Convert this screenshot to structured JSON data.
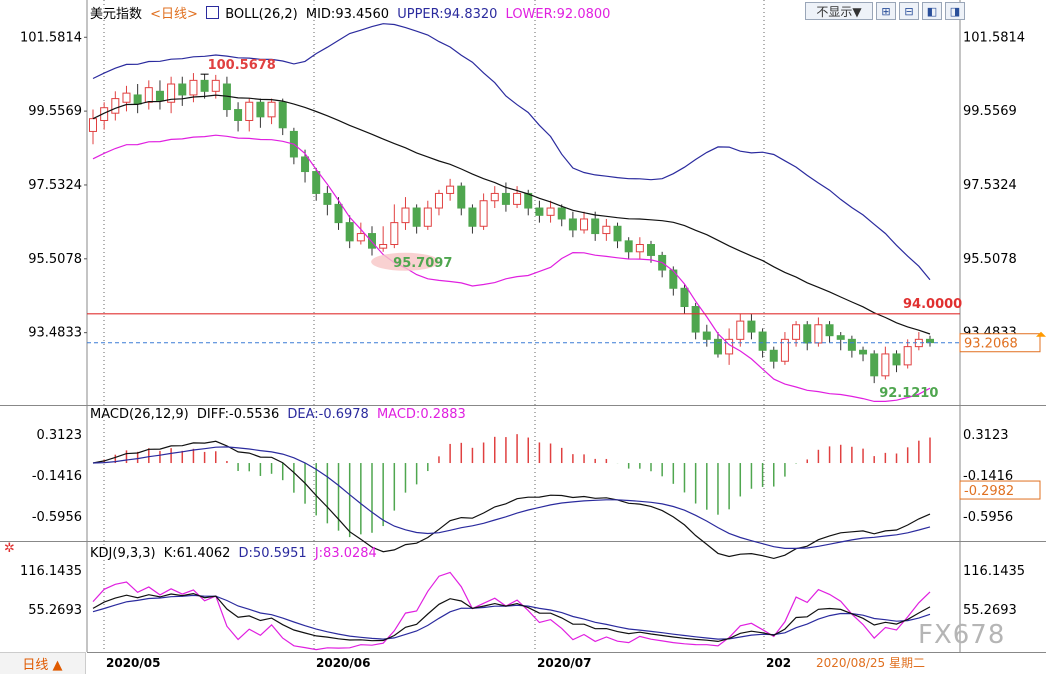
{
  "header": {
    "main": {
      "name": "美元指数",
      "period": "<日线>",
      "indicator": "BOLL(26,2)",
      "mid": "MID:93.4560",
      "upper": "UPPER:94.8320",
      "lower": "LOWER:92.0800"
    },
    "macd": {
      "name": "MACD(26,12,9)",
      "diff": "DIFF:-0.5536",
      "dea": "DEA:-0.6978",
      "macd": "MACD:0.2883"
    },
    "kdj": {
      "name": "KDJ(9,3,3)",
      "k": "K:61.4062",
      "d": "D:50.5951",
      "j": "J:83.0284"
    }
  },
  "toolbar": {
    "hide_label": "不显示▼"
  },
  "bottom_tab": {
    "label": "日线 ▲"
  },
  "watermark": "FX678",
  "colors": {
    "up": "#e04040",
    "down": "#4fa64f",
    "upper": "#2b2b9e",
    "mid": "#111111",
    "lower": "#e020e0",
    "kdj_k": "#111111",
    "kdj_d": "#2b2b9e",
    "kdj_j": "#e020e0",
    "hline": "#e03030",
    "current": "#3a7bd5"
  },
  "chart_data": {
    "type": "candlestick",
    "date_labels": [
      "2020/05",
      "2020/06",
      "2020/07",
      "202",
      "2020/08/25 星期二"
    ],
    "price_axis": [
      "101.5814",
      "99.5569",
      "97.5324",
      "95.5078",
      "93.4833"
    ],
    "price_range": [
      91.5,
      102.0
    ],
    "annotations": {
      "high": "100.5678",
      "low_mid": "95.7097",
      "low_end": "92.1210",
      "hline": "94.0000",
      "current": "93.2068"
    },
    "candles": [
      [
        99.0,
        99.35,
        98.65,
        99.6
      ],
      [
        99.3,
        99.65,
        99.05,
        99.8
      ],
      [
        99.5,
        99.9,
        99.3,
        100.1
      ],
      [
        99.8,
        100.05,
        99.55,
        100.25
      ],
      [
        100.0,
        99.75,
        99.5,
        100.3
      ],
      [
        99.8,
        100.2,
        99.6,
        100.4
      ],
      [
        100.1,
        99.85,
        99.6,
        100.4
      ],
      [
        99.8,
        100.3,
        99.5,
        100.5
      ],
      [
        100.3,
        100.0,
        99.7,
        100.5
      ],
      [
        100.0,
        100.4,
        99.8,
        100.6
      ],
      [
        100.4,
        100.1,
        99.9,
        100.57
      ],
      [
        100.1,
        100.4,
        99.9,
        100.55
      ],
      [
        100.3,
        99.6,
        99.4,
        100.5
      ],
      [
        99.6,
        99.3,
        99.0,
        99.8
      ],
      [
        99.3,
        99.8,
        99.0,
        99.9
      ],
      [
        99.8,
        99.4,
        99.1,
        99.9
      ],
      [
        99.4,
        99.8,
        99.2,
        99.9
      ],
      [
        99.8,
        99.1,
        98.9,
        99.9
      ],
      [
        99.0,
        98.3,
        98.1,
        99.1
      ],
      [
        98.3,
        97.9,
        97.6,
        98.5
      ],
      [
        97.9,
        97.3,
        97.1,
        98.0
      ],
      [
        97.3,
        97.0,
        96.7,
        97.5
      ],
      [
        97.0,
        96.5,
        96.3,
        97.2
      ],
      [
        96.5,
        96.0,
        95.8,
        96.7
      ],
      [
        96.0,
        96.2,
        95.9,
        96.5
      ],
      [
        96.2,
        95.8,
        95.6,
        96.4
      ],
      [
        95.8,
        95.9,
        95.7,
        96.4
      ],
      [
        95.9,
        96.5,
        95.8,
        97.0
      ],
      [
        96.5,
        96.9,
        96.3,
        97.2
      ],
      [
        96.9,
        96.4,
        96.2,
        97.0
      ],
      [
        96.4,
        96.9,
        96.3,
        97.1
      ],
      [
        96.9,
        97.3,
        96.7,
        97.4
      ],
      [
        97.3,
        97.5,
        97.1,
        97.7
      ],
      [
        97.5,
        96.9,
        96.7,
        97.6
      ],
      [
        96.9,
        96.4,
        96.2,
        97.0
      ],
      [
        96.4,
        97.1,
        96.3,
        97.3
      ],
      [
        97.1,
        97.3,
        96.9,
        97.5
      ],
      [
        97.3,
        97.0,
        96.8,
        97.6
      ],
      [
        97.0,
        97.3,
        96.9,
        97.5
      ],
      [
        97.3,
        96.9,
        96.7,
        97.4
      ],
      [
        96.9,
        96.7,
        96.5,
        97.1
      ],
      [
        96.7,
        96.9,
        96.5,
        97.1
      ],
      [
        96.9,
        96.6,
        96.4,
        97.0
      ],
      [
        96.6,
        96.3,
        96.1,
        96.8
      ],
      [
        96.3,
        96.6,
        96.2,
        96.8
      ],
      [
        96.6,
        96.2,
        96.0,
        96.8
      ],
      [
        96.2,
        96.4,
        96.0,
        96.6
      ],
      [
        96.4,
        96.0,
        95.8,
        96.5
      ],
      [
        96.0,
        95.7,
        95.5,
        96.1
      ],
      [
        95.7,
        95.9,
        95.5,
        96.1
      ],
      [
        95.9,
        95.6,
        95.4,
        96.0
      ],
      [
        95.6,
        95.2,
        95.0,
        95.7
      ],
      [
        95.2,
        94.7,
        94.5,
        95.3
      ],
      [
        94.7,
        94.2,
        94.0,
        94.8
      ],
      [
        94.2,
        93.5,
        93.3,
        94.3
      ],
      [
        93.5,
        93.3,
        93.1,
        93.7
      ],
      [
        93.3,
        92.9,
        92.8,
        93.5
      ],
      [
        92.9,
        93.3,
        92.6,
        93.6
      ],
      [
        93.3,
        93.8,
        93.1,
        94.0
      ],
      [
        93.8,
        93.5,
        93.3,
        94.0
      ],
      [
        93.5,
        93.0,
        92.8,
        93.6
      ],
      [
        93.0,
        92.7,
        92.5,
        93.1
      ],
      [
        92.7,
        93.3,
        92.6,
        93.5
      ],
      [
        93.3,
        93.7,
        93.1,
        93.8
      ],
      [
        93.7,
        93.2,
        93.0,
        93.8
      ],
      [
        93.2,
        93.7,
        93.1,
        93.9
      ],
      [
        93.7,
        93.4,
        93.2,
        93.8
      ],
      [
        93.4,
        93.3,
        93.0,
        93.5
      ],
      [
        93.3,
        93.0,
        92.8,
        93.4
      ],
      [
        93.0,
        92.9,
        92.7,
        93.1
      ],
      [
        92.9,
        92.3,
        92.1,
        93.0
      ],
      [
        92.3,
        92.9,
        92.2,
        93.1
      ],
      [
        92.9,
        92.6,
        92.4,
        93.0
      ],
      [
        92.6,
        93.1,
        92.5,
        93.3
      ],
      [
        93.1,
        93.3,
        93.0,
        93.5
      ],
      [
        93.3,
        93.21,
        93.1,
        93.4
      ]
    ]
  }
}
